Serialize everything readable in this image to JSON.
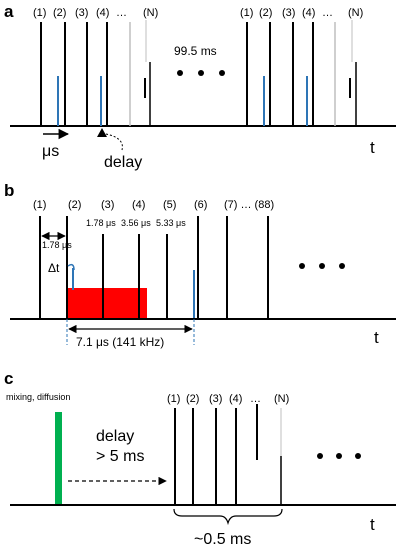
{
  "panel_a": {
    "letter": "a",
    "pulse_labels_left": [
      "(1)",
      "(2)",
      "(3)",
      "(4)",
      "…",
      "(N)"
    ],
    "pulse_labels_right": [
      "(1)",
      "(2)",
      "(3)",
      "(4)",
      "…",
      "(N)"
    ],
    "period_label": "99.5 ms",
    "us_label": "μs",
    "delay_label": "delay",
    "axis_label": "t"
  },
  "panel_b": {
    "letter": "b",
    "pulse_labels": [
      "(1)",
      "(2)",
      "(3)",
      "(4)",
      "(5)",
      "(6)",
      "(7) … (88)"
    ],
    "spacing_labels": [
      "1.78 μs",
      "1.78 μs",
      "3.56 μs",
      "5.33 μs"
    ],
    "dt_label": "Δt",
    "window_label": "7.1 μs (141 kHz)",
    "axis_label": "t",
    "window_color": "#ff0000",
    "probe_color": "#2e75b6"
  },
  "panel_c": {
    "letter": "c",
    "mixing_label": "mixing, diffusion",
    "delay_line1": "delay",
    "delay_line2": "> 5 ms",
    "pulse_labels": [
      "(1)",
      "(2)",
      "(3)",
      "(4)",
      "…",
      "(N)"
    ],
    "span_label": "~0.5 ms",
    "axis_label": "t",
    "mixing_color": "#00b050"
  }
}
